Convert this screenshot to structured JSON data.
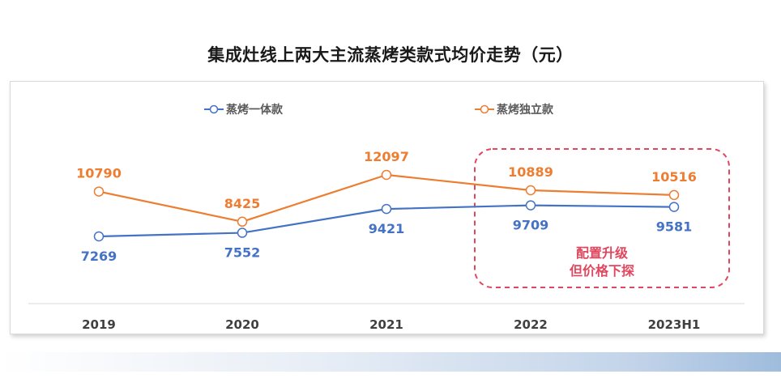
{
  "chart_data": {
    "type": "line",
    "title": "集成灶线上两大主流蒸烤类款式均价走势（元）",
    "categories": [
      "2019",
      "2020",
      "2021",
      "2022",
      "2023H1"
    ],
    "series": [
      {
        "name": "蒸烤一体款",
        "color": "#4472c4",
        "values": [
          7269,
          7552,
          9421,
          9709,
          9581
        ]
      },
      {
        "name": "蒸烤独立款",
        "color": "#ed7d31",
        "values": [
          10790,
          8425,
          12097,
          10889,
          10516
        ]
      }
    ],
    "legend": "top",
    "annotation": {
      "lines": [
        "配置升级",
        "但价格下探"
      ],
      "color": "#e0475f"
    },
    "grid": false
  }
}
